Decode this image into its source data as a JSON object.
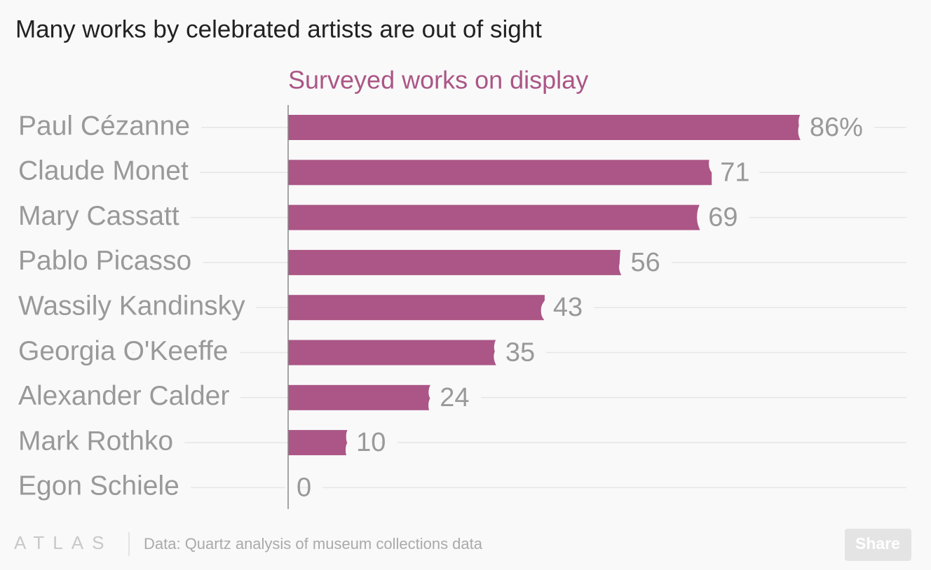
{
  "chart_data": {
    "type": "bar",
    "orientation": "horizontal",
    "title": "Many works by celebrated artists are out of sight",
    "categories": [
      "Paul Cézanne",
      "Claude Monet",
      "Mary Cassatt",
      "Pablo Picasso",
      "Wassily Kandinsky",
      "Georgia O'Keeffe",
      "Alexander Calder",
      "Mark Rothko",
      "Egon Schiele"
    ],
    "series": [
      {
        "name": "Surveyed works on display",
        "color": "#ab5686",
        "values": [
          86,
          71,
          69,
          56,
          43,
          35,
          24,
          10,
          0
        ],
        "value_labels": [
          "86%",
          "71",
          "69",
          "56",
          "43",
          "35",
          "24",
          "10",
          "0"
        ]
      }
    ],
    "xlim": [
      0,
      100
    ],
    "grid": true
  },
  "footer": {
    "brand": "ATLAS",
    "source": "Data: Quartz analysis of museum collections data",
    "button": "Share"
  }
}
